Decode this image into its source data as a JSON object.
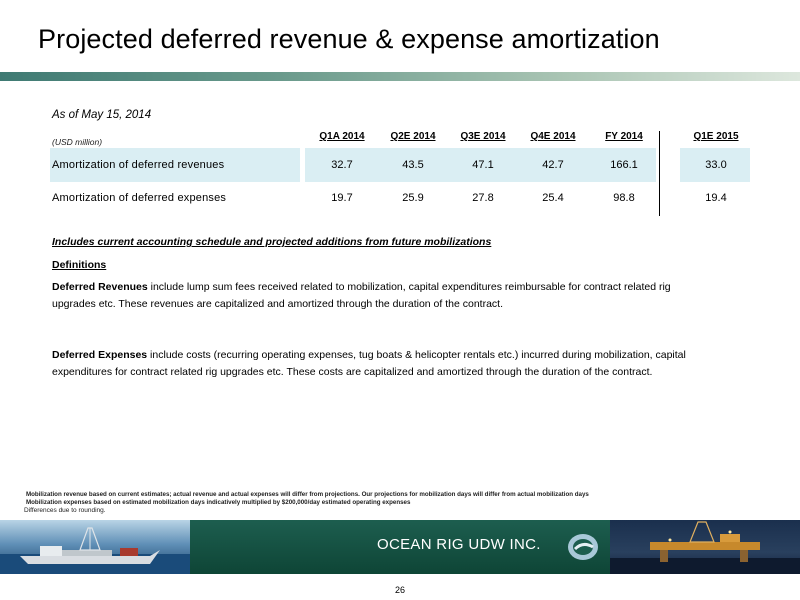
{
  "slide": {
    "title": "Projected deferred revenue & expense amortization",
    "as_of": "As of May 15, 2014",
    "units": "(USD million)",
    "columns": [
      "Q1A 2014",
      "Q2E 2014",
      "Q3E 2014",
      "Q4E 2014",
      "FY 2014",
      "Q1E 2015"
    ],
    "rows": [
      {
        "label": "Amortization of deferred revenues",
        "values": [
          "32.7",
          "43.5",
          "47.1",
          "42.7",
          "166.1",
          "33.0"
        ]
      },
      {
        "label": "Amortization of deferred expenses",
        "values": [
          "19.7",
          "25.9",
          "27.8",
          "25.4",
          "98.8",
          "19.4"
        ]
      }
    ],
    "note": "Includes current accounting schedule and projected additions from future mobilizations",
    "definitions_title": "Definitions",
    "def_revenues_term": "Deferred Revenues",
    "def_revenues_text": " include lump sum fees received related to mobilization, capital expenditures reimbursable for contract related rig upgrades etc.  These revenues are capitalized and amortized through the duration of the contract.",
    "def_expenses_term": "Deferred Expenses",
    "def_expenses_text": " include costs (recurring operating expenses, tug boats & helicopter rentals etc.)  incurred during mobilization, capital expenditures for contract related rig upgrades etc.  These costs are capitalized and amortized through the duration of the contract.",
    "footnotes": [
      "Mobilization revenue based on current estimates; actual revenue and actual expenses will differ from projections. Our projections for mobilization days will differ from actual mobilization days",
      "Mobilization expenses based on estimated  mobilization days indicatively  multiplied by $200,000/day estimated operating expenses",
      "Differences due to rounding."
    ],
    "banner_text": "OCEAN RIG UDW INC.",
    "page_number": "26",
    "colors": {
      "title_bar": "#3f7a73",
      "row_highlight": "#daeef3",
      "banner": "#1d5e4f"
    }
  }
}
